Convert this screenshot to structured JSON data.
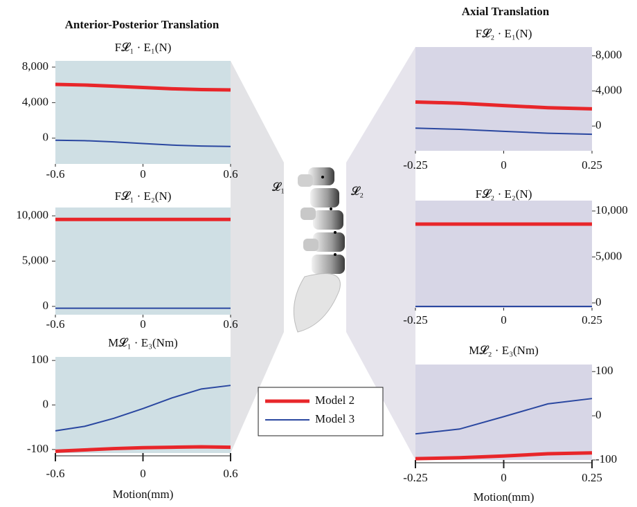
{
  "labels": [
    "𝓛₁",
    "𝓛₂"
  ],
  "chart_data": [
    {
      "type": "line",
      "heading": "Anterior-Posterior Translation",
      "title": "F𝓛₁ · E₁(N)",
      "side": "left",
      "background": "#cfdfe4",
      "x": [
        -0.6,
        -0.4,
        -0.2,
        0,
        0.2,
        0.4,
        0.6
      ],
      "xlim": [
        -0.6,
        0.6
      ],
      "xticks": [
        -0.6,
        0,
        0.6
      ],
      "ylim": [
        -2900,
        8700
      ],
      "yticks": [
        0,
        {
          "value": 4000,
          "label": "4,000"
        },
        {
          "value": 8000,
          "label": "8,000"
        }
      ],
      "series": [
        {
          "name": "Model 2",
          "color": "#e8262a",
          "values": [
            6050,
            5980,
            5850,
            5700,
            5560,
            5470,
            5430
          ]
        },
        {
          "name": "Model 3",
          "color": "#2a47a0",
          "values": [
            -230,
            -280,
            -420,
            -600,
            -780,
            -890,
            -930
          ]
        }
      ]
    },
    {
      "type": "line",
      "title": "F𝓛₁ · E₂(N)",
      "side": "left",
      "background": "#cfdfe4",
      "x": [
        -0.6,
        -0.4,
        -0.2,
        0,
        0.2,
        0.4,
        0.6
      ],
      "xlim": [
        -0.6,
        0.6
      ],
      "xticks": [
        -0.6,
        0,
        0.6
      ],
      "ylim": [
        -920,
        10920
      ],
      "yticks": [
        0,
        {
          "value": 5000,
          "label": "5,000"
        },
        {
          "value": 10000,
          "label": "10,000"
        }
      ],
      "series": [
        {
          "name": "Model 2",
          "color": "#e8262a",
          "values": [
            9600,
            9600,
            9600,
            9600,
            9600,
            9600,
            9600
          ]
        },
        {
          "name": "Model 3",
          "color": "#2a47a0",
          "values": [
            -200,
            -200,
            -200,
            -200,
            -200,
            -200,
            -200
          ]
        }
      ]
    },
    {
      "type": "line",
      "title": "M𝓛₁ · E₃(Nm)",
      "xlabel": "Motion(mm)",
      "side": "left",
      "background": "#cfdfe4",
      "x": [
        -0.6,
        -0.4,
        -0.2,
        0,
        0.2,
        0.4,
        0.6
      ],
      "xlim": [
        -0.6,
        0.6
      ],
      "xticks": [
        -0.6,
        0,
        0.6
      ],
      "ylim": [
        -108,
        108
      ],
      "yticks": [
        -100,
        0,
        100
      ],
      "series": [
        {
          "name": "Model 2",
          "color": "#e8262a",
          "values": [
            -104,
            -101,
            -98,
            -96,
            -95,
            -94,
            -95
          ]
        },
        {
          "name": "Model 3",
          "color": "#2a47a0",
          "values": [
            -58,
            -48,
            -30,
            -8,
            16,
            36,
            44
          ]
        }
      ]
    },
    {
      "type": "line",
      "heading": "Axial Translation",
      "title": "F𝓛₂ · E₁(N)",
      "side": "right",
      "background": "#d7d6e6",
      "x": [
        -0.25,
        -0.125,
        0,
        0.125,
        0.25
      ],
      "xlim": [
        -0.25,
        0.25
      ],
      "xticks": [
        -0.25,
        0,
        0.25
      ],
      "ylim": [
        -2820,
        9000
      ],
      "yticks": [
        0,
        {
          "value": 4000,
          "label": "4,000"
        },
        {
          "value": 8000,
          "label": "8,000"
        }
      ],
      "series": [
        {
          "name": "Model 2",
          "color": "#e8262a",
          "values": [
            2740,
            2600,
            2330,
            2090,
            1960
          ]
        },
        {
          "name": "Model 3",
          "color": "#2a47a0",
          "values": [
            -235,
            -380,
            -600,
            -820,
            -940
          ]
        }
      ]
    },
    {
      "type": "line",
      "title": "F𝓛₂ · E₂(N)",
      "side": "right",
      "background": "#d7d6e6",
      "x": [
        -0.25,
        -0.125,
        0,
        0.125,
        0.25
      ],
      "xlim": [
        -0.25,
        0.25
      ],
      "xticks": [
        -0.25,
        0,
        0.25
      ],
      "ylim": [
        -530,
        11130
      ],
      "yticks": [
        0,
        {
          "value": 5000,
          "label": "5,000"
        },
        {
          "value": 10000,
          "label": "10,000"
        }
      ],
      "series": [
        {
          "name": "Model 2",
          "color": "#e8262a",
          "values": [
            8570,
            8570,
            8570,
            8570,
            8570
          ]
        },
        {
          "name": "Model 3",
          "color": "#2a47a0",
          "values": [
            -375,
            -375,
            -375,
            -375,
            -375
          ]
        }
      ]
    },
    {
      "type": "line",
      "title": "M𝓛₂ · E₃(Nm)",
      "xlabel": "Motion(mm)",
      "side": "right",
      "background": "#d7d6e6",
      "x": [
        -0.25,
        -0.125,
        0,
        0.125,
        0.25
      ],
      "xlim": [
        -0.25,
        0.25
      ],
      "xticks": [
        -0.25,
        0,
        0.25
      ],
      "ylim": [
        -100,
        116
      ],
      "yticks": [
        -100,
        0,
        100
      ],
      "series": [
        {
          "name": "Model 2",
          "color": "#e8262a",
          "values": [
            -97,
            -95,
            -91,
            -86,
            -84
          ]
        },
        {
          "name": "Model 3",
          "color": "#2a47a0",
          "values": [
            -41,
            -30,
            -2,
            27,
            39
          ]
        }
      ]
    }
  ]
}
